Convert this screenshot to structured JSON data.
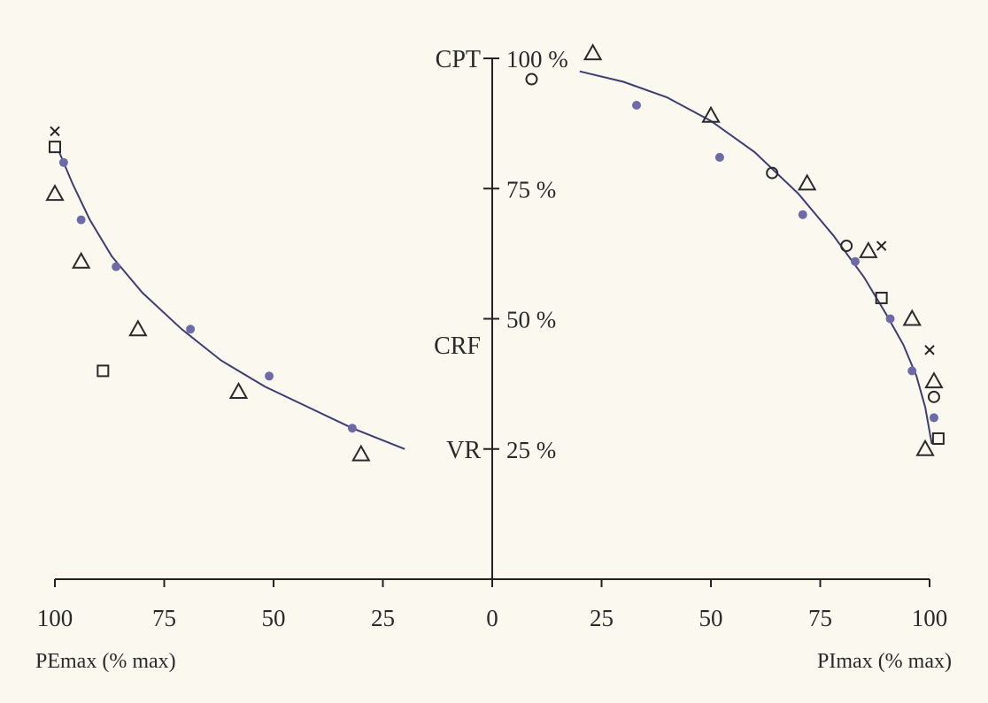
{
  "chart_data": {
    "type": "scatter",
    "axes": {
      "left_x": {
        "label": "PEmax (% max)",
        "ticks": [
          "100",
          "75",
          "50",
          "25"
        ],
        "range": [
          100,
          0
        ],
        "direction": "reversed"
      },
      "right_x": {
        "label": "PImax (% max)",
        "ticks": [
          "0",
          "25",
          "50",
          "75",
          "100"
        ],
        "range": [
          0,
          100
        ]
      },
      "y": {
        "range": [
          0,
          100
        ],
        "ticks": [
          "100 %",
          "75 %",
          "50 %",
          "25 %"
        ],
        "tick_values": [
          100,
          75,
          50,
          25
        ]
      }
    },
    "volume_levels": [
      {
        "label": "CPT",
        "value": 100
      },
      {
        "label": "CRF",
        "value": 45
      },
      {
        "label": "VR",
        "value": 25
      }
    ],
    "series": [
      {
        "marker": "x",
        "pe_points": [
          [
            100,
            86
          ]
        ],
        "pi_points": [
          [
            89,
            64
          ],
          [
            100,
            44
          ]
        ]
      },
      {
        "marker": "square",
        "pe_points": [
          [
            100,
            83
          ],
          [
            89,
            40
          ]
        ],
        "pi_points": [
          [
            89,
            54
          ],
          [
            102,
            27
          ]
        ]
      },
      {
        "marker": "dot",
        "pe_points": [
          [
            98,
            80
          ],
          [
            94,
            69
          ],
          [
            86,
            60
          ],
          [
            69,
            48
          ],
          [
            51,
            39
          ],
          [
            32,
            29
          ]
        ],
        "pi_points": [
          [
            33,
            91
          ],
          [
            52,
            81
          ],
          [
            71,
            70
          ],
          [
            83,
            61
          ],
          [
            91,
            50
          ],
          [
            96,
            40
          ],
          [
            101,
            31
          ]
        ]
      },
      {
        "marker": "triangle",
        "pe_points": [
          [
            100,
            74
          ],
          [
            94,
            61
          ],
          [
            81,
            48
          ],
          [
            58,
            36
          ],
          [
            30,
            24
          ]
        ],
        "pi_points": [
          [
            23,
            101
          ],
          [
            50,
            89
          ],
          [
            72,
            76
          ],
          [
            86,
            63
          ],
          [
            96,
            50
          ],
          [
            101,
            38
          ],
          [
            99,
            25
          ]
        ]
      },
      {
        "marker": "circle",
        "pe_points": [],
        "pi_points": [
          [
            9,
            96
          ],
          [
            64,
            78
          ],
          [
            81,
            64
          ],
          [
            101,
            35
          ]
        ]
      }
    ],
    "fit_curves": {
      "pe": [
        [
          99,
          82
        ],
        [
          96,
          76
        ],
        [
          92,
          69
        ],
        [
          87,
          62
        ],
        [
          80,
          55
        ],
        [
          71,
          48
        ],
        [
          62,
          42
        ],
        [
          52,
          37
        ],
        [
          42,
          33
        ],
        [
          32,
          29
        ],
        [
          20,
          25
        ]
      ],
      "pi": [
        [
          20,
          97.5
        ],
        [
          30,
          95.5
        ],
        [
          40,
          92.5
        ],
        [
          50,
          88
        ],
        [
          60,
          82
        ],
        [
          70,
          74
        ],
        [
          78,
          66
        ],
        [
          85,
          58
        ],
        [
          90,
          51
        ],
        [
          94,
          45
        ],
        [
          97,
          39
        ],
        [
          99,
          33
        ],
        [
          100.5,
          26
        ]
      ]
    },
    "colors": {
      "background": "#fbf8f0",
      "axis": "#222222",
      "curve": "#3e3d72",
      "open_marker": "#2a2a2a",
      "dot_marker": "#6d6aa8",
      "x_marker": "#222222"
    }
  }
}
